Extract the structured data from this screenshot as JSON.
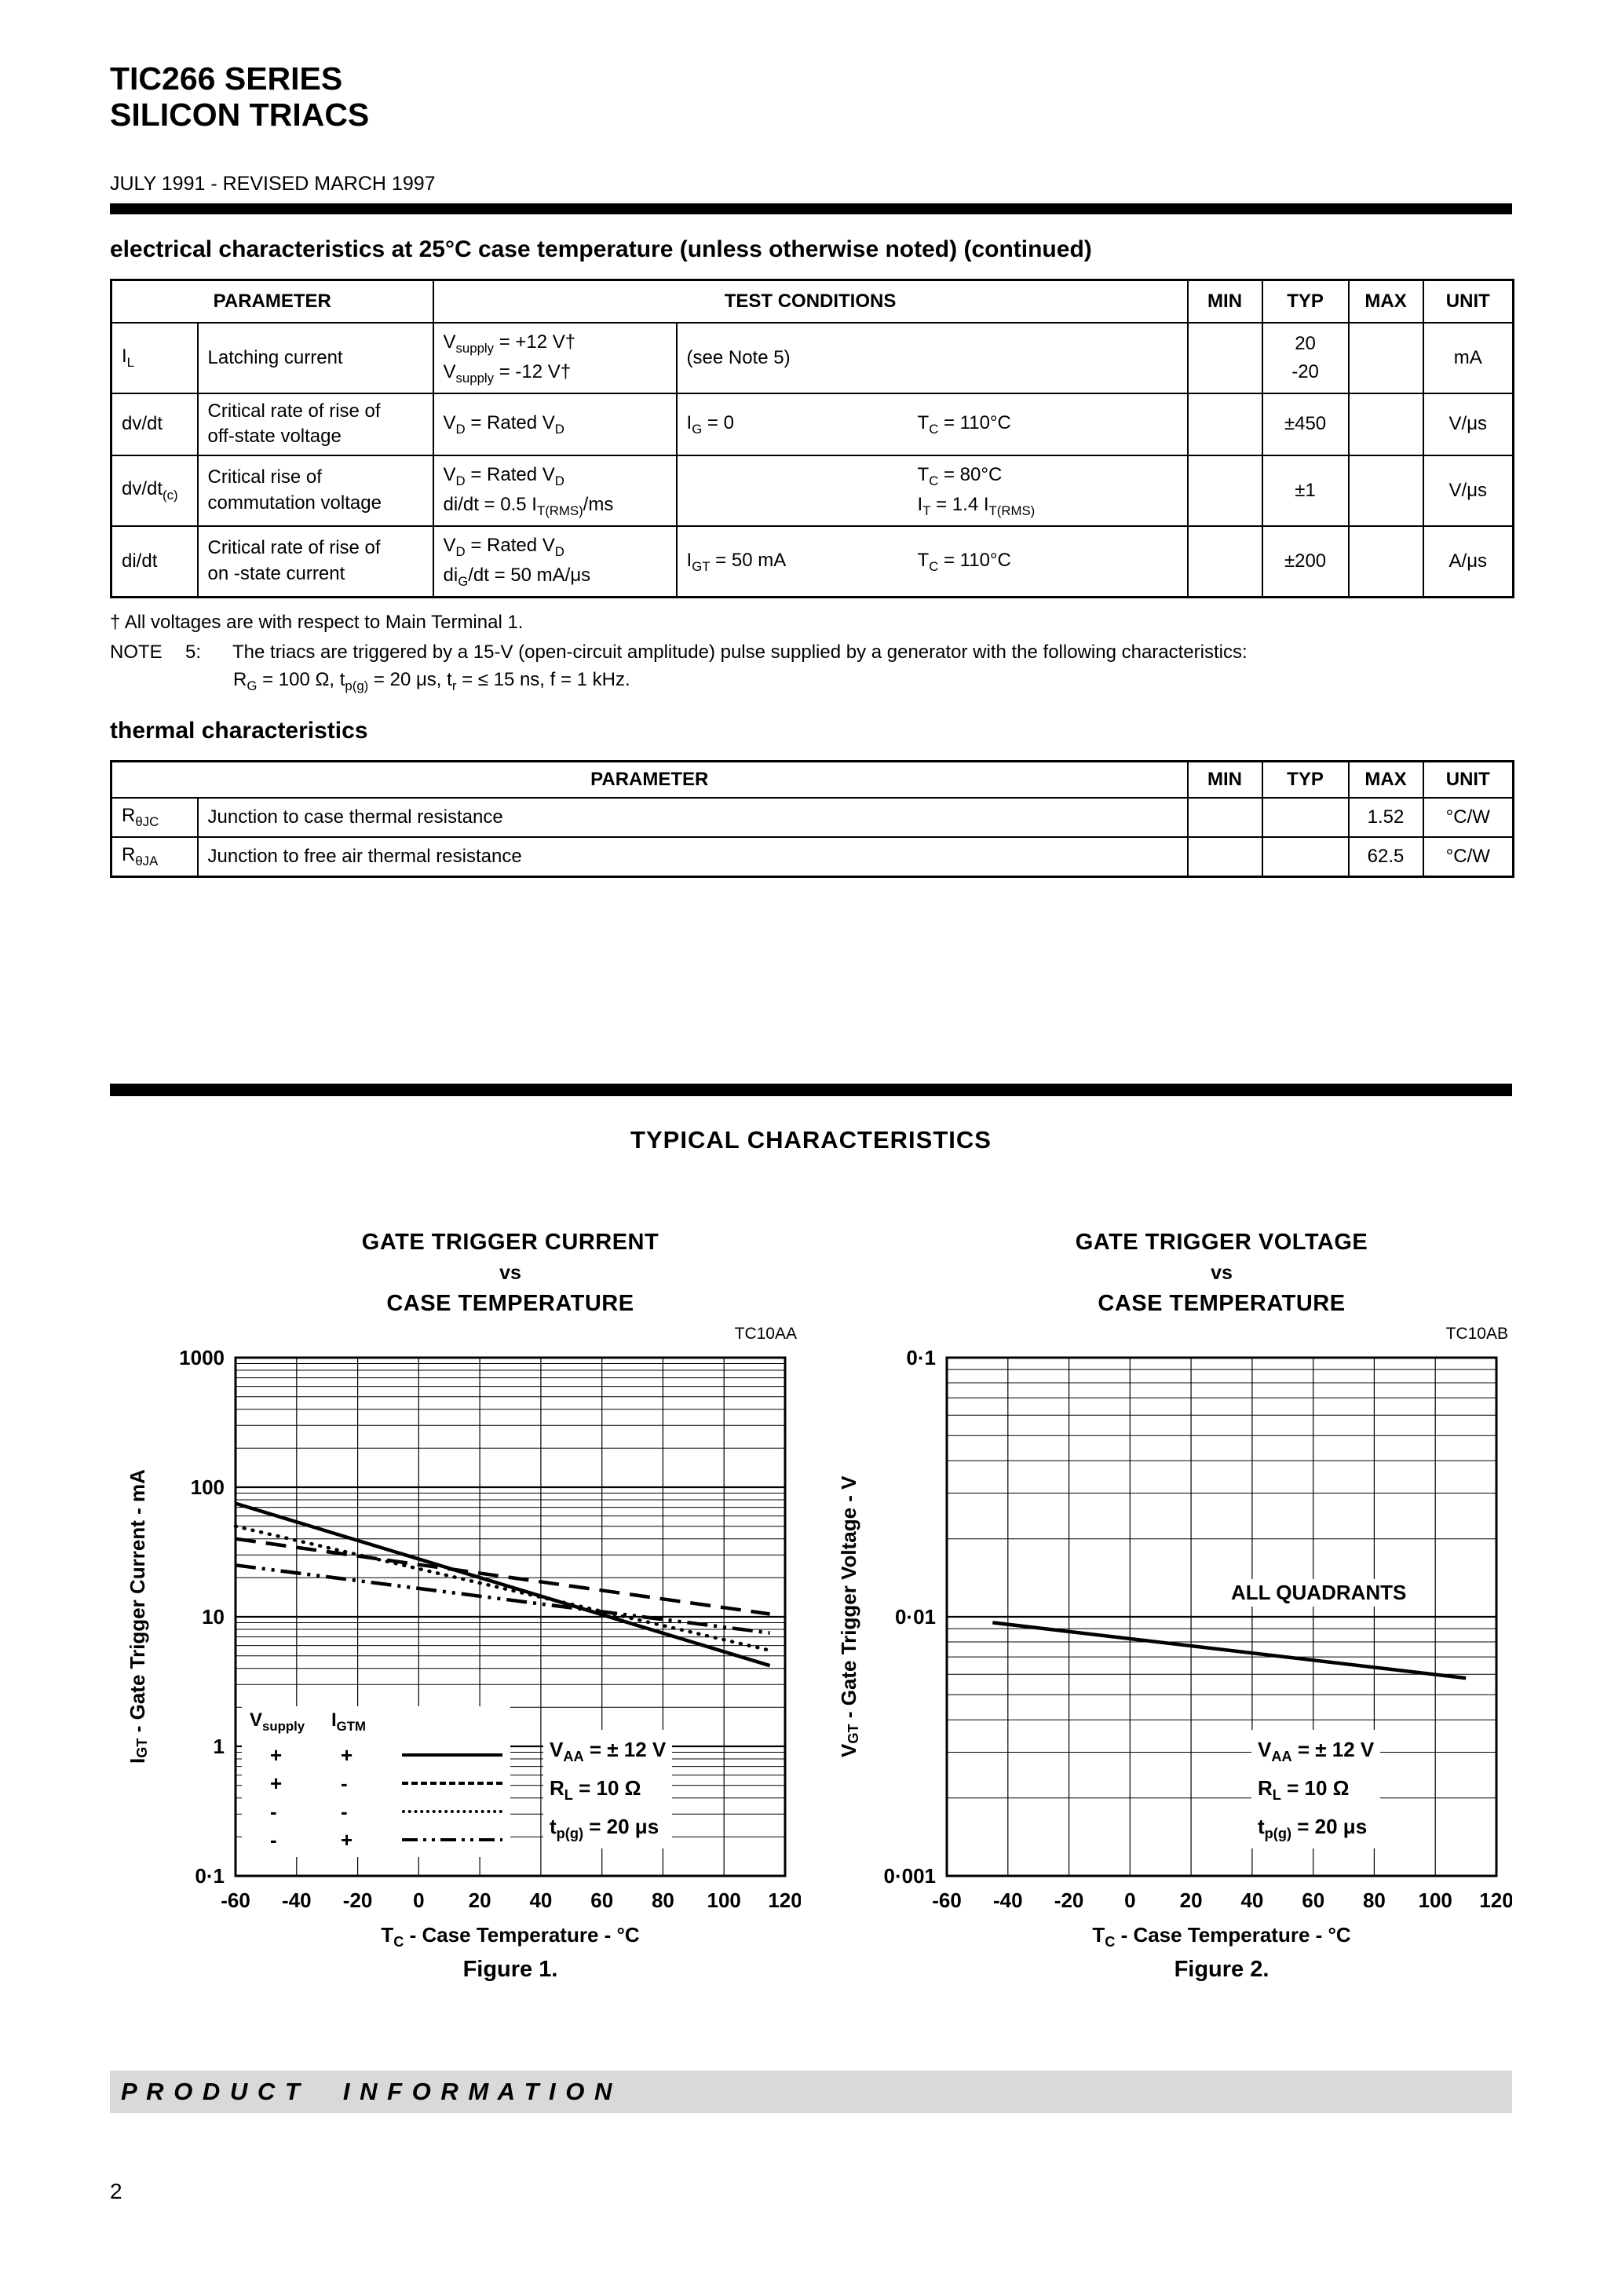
{
  "header": {
    "title_line1": "TIC266 SERIES",
    "title_line2": "SILICON TRIACS",
    "revision": "JULY 1991 - REVISED MARCH 1997"
  },
  "electrical": {
    "heading": "electrical characteristics at 25°C case temperature (unless otherwise noted) (continued)",
    "columns": {
      "parameter": "PARAMETER",
      "test_conditions": "TEST CONDITIONS",
      "min": "MIN",
      "typ": "TYP",
      "max": "MAX",
      "unit": "UNIT"
    },
    "rows": [
      {
        "symbol": "I<sub>L</sub>",
        "name": "Latching current",
        "cond1": "V<sub>supply</sub> = +12 V†<br>V<sub>supply</sub> = -12 V†",
        "cond2": "(see Note 5)",
        "cond3": "",
        "min": "",
        "typ": "20<br>-20",
        "max": "",
        "unit": "mA"
      },
      {
        "symbol": "dv/dt",
        "name": "Critical rate of rise of<br>off-state voltage",
        "cond1": "V<sub>D</sub> = Rated V<sub>D</sub>",
        "cond2": "I<sub>G</sub> = 0",
        "cond3": "T<sub>C</sub> = 110°C",
        "min": "",
        "typ": "±450",
        "max": "",
        "unit": "V/μs"
      },
      {
        "symbol": "dv/dt<sub>(c)</sub>",
        "name": "Critical rise of<br>commutation voltage",
        "cond1": "V<sub>D</sub> = Rated V<sub>D</sub><br>di/dt = 0.5 I<sub>T(RMS)</sub>/ms",
        "cond2": "",
        "cond3": "T<sub>C</sub> = 80°C<br>I<sub>T</sub> = 1.4 I<sub>T(RMS)</sub>",
        "min": "",
        "typ": "±1",
        "max": "",
        "unit": "V/μs"
      },
      {
        "symbol": "di/dt",
        "name": "Critical rate of rise of<br>on -state current",
        "cond1": "V<sub>D</sub> = Rated V<sub>D</sub><br>di<sub>G</sub>/dt = 50 mA/μs",
        "cond2": "I<sub>GT</sub> = 50 mA",
        "cond3": "T<sub>C</sub> = 110°C",
        "min": "",
        "typ": "±200",
        "max": "",
        "unit": "A/μs"
      }
    ],
    "footnote_dagger": "† All voltages are with respect to Main Terminal 1.",
    "note5_word": "NOTE",
    "note5_number": "5:",
    "note5_text": "The triacs are triggered by a 15-V (open-circuit amplitude) pulse supplied by a generator with the following characteristics:",
    "note5_formula": "R<sub>G</sub> = 100 Ω, t<sub>p(g)</sub> = 20 μs, t<sub>r</sub> = ≤ 15 ns, f = 1 kHz."
  },
  "thermal": {
    "heading": "thermal characteristics",
    "columns": {
      "parameter": "PARAMETER",
      "min": "MIN",
      "typ": "TYP",
      "max": "MAX",
      "unit": "UNIT"
    },
    "rows": [
      {
        "symbol": "R<sub>θJC</sub>",
        "name": "Junction to case thermal resistance",
        "min": "",
        "typ": "",
        "max": "1.52",
        "unit": "°C/W"
      },
      {
        "symbol": "R<sub>θJA</sub>",
        "name": "Junction to free air thermal resistance",
        "min": "",
        "typ": "",
        "max": "62.5",
        "unit": "°C/W"
      }
    ]
  },
  "typical_heading": "TYPICAL CHARACTERISTICS",
  "chart_data": [
    {
      "type": "line",
      "code": "TC10AA",
      "title": "GATE TRIGGER CURRENT",
      "vs": "vs",
      "subtitle": "CASE TEMPERATURE",
      "xlabel_html": "T<sub>C</sub> - Case Temperature - °C",
      "ylabel_html": "I<sub>GT</sub> - Gate Trigger Current - mA",
      "caption": "Figure 1.",
      "y_scale": "log",
      "xlim": [
        -60,
        120
      ],
      "ylim": [
        0.1,
        1000
      ],
      "x_ticks": [
        -60,
        -40,
        -20,
        0,
        20,
        40,
        60,
        80,
        100,
        120
      ],
      "y_ticks": [
        0.1,
        1,
        10,
        100,
        1000
      ],
      "y_tick_labels": [
        "0·1",
        "1",
        "10",
        "100",
        "1000"
      ],
      "series": [
        {
          "name": "V_supply +, I_GTM +",
          "style": "solid",
          "x": [
            -60,
            115
          ],
          "y": [
            75,
            4.2
          ]
        },
        {
          "name": "V_supply +, I_GTM -",
          "style": "dashed",
          "x": [
            -60,
            115
          ],
          "y": [
            40,
            10.5
          ]
        },
        {
          "name": "V_supply -, I_GTM -",
          "style": "dotted",
          "x": [
            -60,
            115
          ],
          "y": [
            50,
            5.5
          ]
        },
        {
          "name": "V_supply -, I_GTM +",
          "style": "dashdot",
          "x": [
            -60,
            115
          ],
          "y": [
            25,
            7.5
          ]
        }
      ],
      "legend": {
        "header_v": "V<sub>supply</sub>",
        "header_i": "I<sub>GTM</sub>",
        "rows": [
          {
            "v": "+",
            "i": "+"
          },
          {
            "v": "+",
            "i": "-"
          },
          {
            "v": "-",
            "i": "-"
          },
          {
            "v": "-",
            "i": "+"
          }
        ]
      },
      "annotations": [
        "V<sub>AA</sub> = ± 12 V",
        "R<sub>L</sub> = 10 Ω",
        "t<sub>p(g)</sub> = 20 μs"
      ]
    },
    {
      "type": "line",
      "code": "TC10AB",
      "title": "GATE TRIGGER VOLTAGE",
      "vs": "vs",
      "subtitle": "CASE TEMPERATURE",
      "xlabel_html": "T<sub>C</sub> - Case Temperature - °C",
      "ylabel_html": "V<sub>GT</sub> - Gate Trigger Voltage - V",
      "caption": "Figure 2.",
      "y_scale": "log",
      "xlim": [
        -60,
        120
      ],
      "ylim": [
        0.001,
        0.1
      ],
      "x_ticks": [
        -60,
        -40,
        -20,
        0,
        20,
        40,
        60,
        80,
        100,
        120
      ],
      "y_ticks": [
        0.001,
        0.01,
        0.1
      ],
      "y_tick_labels": [
        "0·001",
        "0·01",
        "0·1"
      ],
      "curve_label": "ALL QUADRANTS",
      "series": [
        {
          "name": "ALL QUADRANTS",
          "style": "solid",
          "x": [
            -45,
            110
          ],
          "y": [
            0.0095,
            0.0058
          ]
        }
      ],
      "annotations": [
        "V<sub>AA</sub> = ± 12 V",
        "R<sub>L</sub> = 10 Ω",
        "t<sub>p(g)</sub> = 20 μs"
      ]
    }
  ],
  "footer": {
    "banner": "P R O D U C T     I N F O R M A T I O N",
    "page_number": "2"
  }
}
